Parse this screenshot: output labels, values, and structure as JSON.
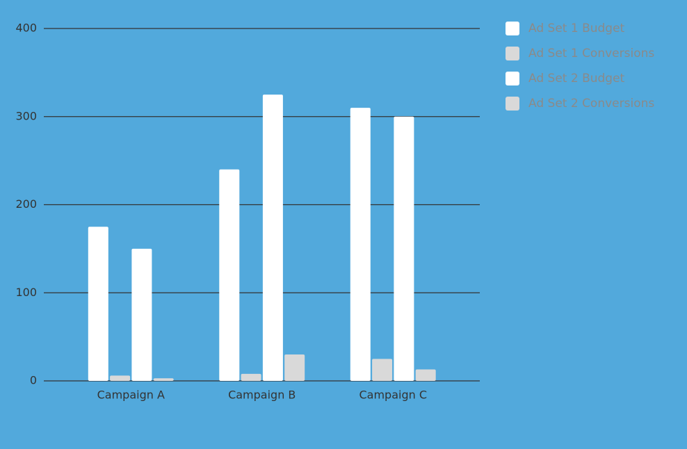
{
  "chart_data": {
    "type": "bar",
    "categories": [
      "Campaign A",
      "Campaign B",
      "Campaign C"
    ],
    "series": [
      {
        "name": "Ad Set 1 Budget",
        "color": "#ffffff",
        "values": [
          175,
          240,
          310
        ]
      },
      {
        "name": "Ad Set 1 Conversions",
        "color": "#d9d9d9",
        "values": [
          6,
          8,
          25
        ]
      },
      {
        "name": "Ad Set 2 Budget",
        "color": "#ffffff",
        "values": [
          150,
          325,
          300
        ]
      },
      {
        "name": "Ad Set 2 Conversions",
        "color": "#d9d9d9",
        "values": [
          3,
          30,
          13
        ]
      }
    ],
    "ylim": [
      0,
      400
    ],
    "yticks": [
      0,
      100,
      200,
      300,
      400
    ],
    "grid": true,
    "legend": "right"
  }
}
